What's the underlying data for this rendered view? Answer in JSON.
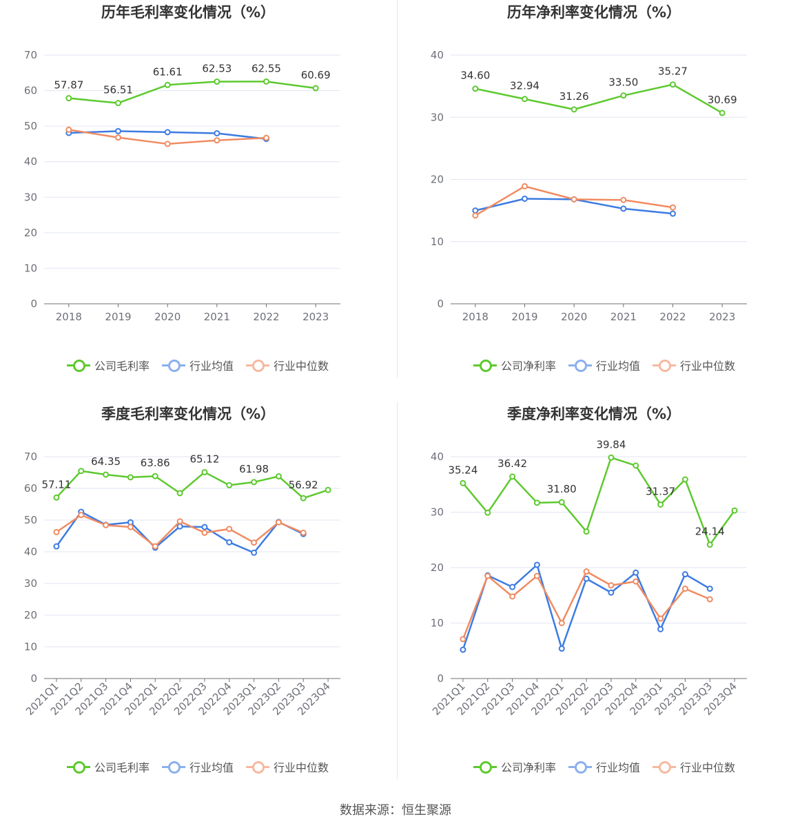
{
  "colors": {
    "company": "#5dc92e",
    "avg": "#3c7be2",
    "median": "#f08b61",
    "grid": "#e0e6f1",
    "axis": "#6e7079"
  },
  "source": "数据来源：恒生聚源",
  "legend_avg": "行业均值",
  "legend_median": "行业中位数",
  "chart_data": [
    {
      "type": "line",
      "title": "历年毛利率变化情况（%）",
      "categories": [
        "2018",
        "2019",
        "2020",
        "2021",
        "2022",
        "2023"
      ],
      "ylim": [
        0,
        70
      ],
      "yticks": [
        0,
        10,
        20,
        30,
        40,
        50,
        60,
        70
      ],
      "legend_position": "bottom",
      "series": [
        {
          "name": "公司毛利率",
          "key": "company",
          "values": [
            57.87,
            56.51,
            61.61,
            62.53,
            62.55,
            60.69
          ],
          "labels": [
            "57.87",
            "56.51",
            "61.61",
            "62.53",
            "62.55",
            "60.69"
          ]
        },
        {
          "name": "行业均值",
          "key": "avg",
          "values": [
            48.1,
            48.6,
            48.3,
            48.0,
            46.4,
            null
          ]
        },
        {
          "name": "行业中位数",
          "key": "median",
          "values": [
            49.0,
            46.8,
            45.0,
            46.0,
            46.7,
            null
          ]
        }
      ]
    },
    {
      "type": "line",
      "title": "历年净利率变化情况（%）",
      "categories": [
        "2018",
        "2019",
        "2020",
        "2021",
        "2022",
        "2023"
      ],
      "ylim": [
        0,
        40
      ],
      "yticks": [
        0,
        10,
        20,
        30,
        40
      ],
      "legend_position": "bottom",
      "series": [
        {
          "name": "公司净利率",
          "key": "company",
          "values": [
            34.6,
            32.94,
            31.26,
            33.5,
            35.27,
            30.69
          ],
          "labels": [
            "34.60",
            "32.94",
            "31.26",
            "33.50",
            "35.27",
            "30.69"
          ]
        },
        {
          "name": "行业均值",
          "key": "avg",
          "values": [
            15.0,
            16.9,
            16.8,
            15.3,
            14.5,
            null
          ]
        },
        {
          "name": "行业中位数",
          "key": "median",
          "values": [
            14.2,
            18.9,
            16.8,
            16.7,
            15.5,
            null
          ]
        }
      ]
    },
    {
      "type": "line",
      "title": "季度毛利率变化情况（%）",
      "categories": [
        "2021Q1",
        "2021Q2",
        "2021Q3",
        "2021Q4",
        "2022Q1",
        "2022Q2",
        "2022Q3",
        "2022Q4",
        "2023Q1",
        "2023Q2",
        "2023Q3",
        "2023Q4"
      ],
      "ylim": [
        0,
        70
      ],
      "yticks": [
        0,
        10,
        20,
        30,
        40,
        50,
        60,
        70
      ],
      "legend_position": "bottom",
      "series": [
        {
          "name": "公司毛利率",
          "key": "company",
          "values": [
            57.11,
            65.5,
            64.35,
            63.5,
            63.86,
            58.5,
            65.12,
            61.0,
            61.98,
            63.8,
            56.92,
            59.5
          ],
          "labels": [
            "57.11",
            "",
            "64.35",
            "",
            "63.86",
            "",
            "65.12",
            "",
            "61.98",
            "",
            "56.92",
            ""
          ]
        },
        {
          "name": "行业均值",
          "key": "avg",
          "values": [
            41.7,
            52.6,
            48.5,
            49.3,
            41.3,
            48.0,
            47.8,
            43.0,
            39.7,
            49.4,
            45.6,
            null
          ]
        },
        {
          "name": "行业中位数",
          "key": "median",
          "values": [
            46.2,
            51.6,
            48.4,
            47.8,
            41.7,
            49.6,
            46.0,
            47.2,
            42.9,
            49.3,
            46.0,
            null
          ]
        }
      ]
    },
    {
      "type": "line",
      "title": "季度净利率变化情况（%）",
      "categories": [
        "2021Q1",
        "2021Q2",
        "2021Q3",
        "2021Q4",
        "2022Q1",
        "2022Q2",
        "2022Q3",
        "2022Q4",
        "2023Q1",
        "2023Q2",
        "2023Q3",
        "2023Q4"
      ],
      "ylim": [
        0,
        40
      ],
      "yticks": [
        0,
        10,
        20,
        30,
        40
      ],
      "legend_position": "bottom",
      "series": [
        {
          "name": "公司净利率",
          "key": "company",
          "values": [
            35.24,
            29.9,
            36.42,
            31.7,
            31.8,
            26.5,
            39.84,
            38.4,
            31.37,
            35.9,
            24.14,
            30.3
          ],
          "labels": [
            "35.24",
            "",
            "36.42",
            "",
            "31.80",
            "",
            "39.84",
            "",
            "31.37",
            "",
            "24.14",
            ""
          ]
        },
        {
          "name": "行业均值",
          "key": "avg",
          "values": [
            5.2,
            18.6,
            16.5,
            20.5,
            5.4,
            18.0,
            15.5,
            19.1,
            8.9,
            18.8,
            16.2,
            null
          ]
        },
        {
          "name": "行业中位数",
          "key": "median",
          "values": [
            7.1,
            18.5,
            14.8,
            18.5,
            10.0,
            19.3,
            16.8,
            17.5,
            10.8,
            16.2,
            14.3,
            null
          ]
        }
      ]
    }
  ]
}
